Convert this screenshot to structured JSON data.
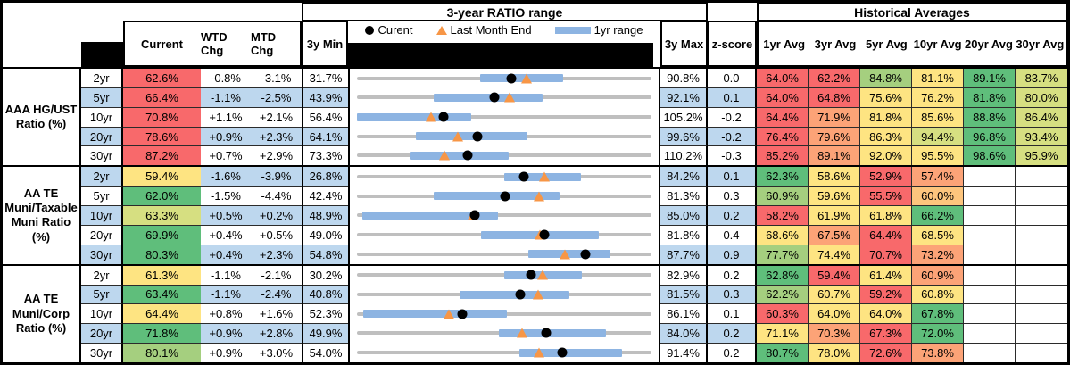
{
  "palette": {
    "r": "#F8696B",
    "o": "#FCA377",
    "oy": "#FDC57D",
    "y": "#FEE482",
    "yg": "#D6DF81",
    "lg": "#A5CF7F",
    "g": "#5FBE7B",
    "w": "#FFFFFF",
    "rowalt": "#BDD7EE",
    "bar_blue": "#8DB4E2",
    "line_gray": "#BFBFBF",
    "triangle_orange": "#F79646"
  },
  "header": {
    "chart_title": "3-year RATIO range",
    "hist_title": "Historical Averages",
    "col_current": "Current",
    "col_wtd": "WTD Chg",
    "col_mtd": "MTD Chg",
    "col_min": "3y Min",
    "col_max": "3y Max",
    "col_z": "z-score",
    "avg_cols": [
      "1yr Avg",
      "3yr Avg",
      "5yr Avg",
      "10yr Avg",
      "20yr Avg",
      "30yr Avg"
    ],
    "legend": {
      "current": "Curent",
      "last_month": "Last Month End",
      "range": "1yr range"
    }
  },
  "groups": [
    {
      "label": "AAA HG/UST Ratio (%)",
      "rows": [
        {
          "tenor": "2yr",
          "current": "62.6%",
          "cur_color": "r",
          "wtd": "-0.8%",
          "mtd": "-3.1%",
          "min": "31.7%",
          "max": "90.8%",
          "z": "0.0",
          "avgs": [
            {
              "v": "64.0%",
              "c": "r"
            },
            {
              "v": "62.2%",
              "c": "r"
            },
            {
              "v": "84.8%",
              "c": "lg"
            },
            {
              "v": "81.1%",
              "c": "y"
            },
            {
              "v": "89.1%",
              "c": "g"
            },
            {
              "v": "83.7%",
              "c": "yg"
            }
          ]
        },
        {
          "tenor": "5yr",
          "current": "66.4%",
          "cur_color": "r",
          "wtd": "-1.1%",
          "mtd": "-2.5%",
          "min": "43.9%",
          "max": "92.1%",
          "z": "0.1",
          "avgs": [
            {
              "v": "64.0%",
              "c": "r"
            },
            {
              "v": "64.8%",
              "c": "r"
            },
            {
              "v": "75.6%",
              "c": "y"
            },
            {
              "v": "76.2%",
              "c": "y"
            },
            {
              "v": "81.8%",
              "c": "g"
            },
            {
              "v": "80.0%",
              "c": "yg"
            }
          ]
        },
        {
          "tenor": "10yr",
          "current": "70.8%",
          "cur_color": "r",
          "wtd": "+1.1%",
          "mtd": "+2.1%",
          "min": "56.4%",
          "max": "105.2%",
          "z": "-0.2",
          "avgs": [
            {
              "v": "64.4%",
              "c": "r"
            },
            {
              "v": "71.9%",
              "c": "o"
            },
            {
              "v": "81.8%",
              "c": "y"
            },
            {
              "v": "85.6%",
              "c": "y"
            },
            {
              "v": "88.8%",
              "c": "g"
            },
            {
              "v": "86.4%",
              "c": "yg"
            }
          ]
        },
        {
          "tenor": "20yr",
          "current": "78.6%",
          "cur_color": "r",
          "wtd": "+0.9%",
          "mtd": "+2.3%",
          "min": "64.1%",
          "max": "99.6%",
          "z": "-0.2",
          "avgs": [
            {
              "v": "76.4%",
              "c": "r"
            },
            {
              "v": "79.6%",
              "c": "o"
            },
            {
              "v": "86.3%",
              "c": "y"
            },
            {
              "v": "94.4%",
              "c": "yg"
            },
            {
              "v": "96.8%",
              "c": "g"
            },
            {
              "v": "93.4%",
              "c": "yg"
            }
          ]
        },
        {
          "tenor": "30yr",
          "current": "87.2%",
          "cur_color": "r",
          "wtd": "+0.7%",
          "mtd": "+2.9%",
          "min": "73.3%",
          "max": "110.2%",
          "z": "-0.3",
          "avgs": [
            {
              "v": "85.2%",
              "c": "r"
            },
            {
              "v": "89.1%",
              "c": "o"
            },
            {
              "v": "92.0%",
              "c": "y"
            },
            {
              "v": "95.5%",
              "c": "y"
            },
            {
              "v": "98.6%",
              "c": "g"
            },
            {
              "v": "95.9%",
              "c": "yg"
            }
          ]
        }
      ]
    },
    {
      "label": "AA TE Muni/Taxable Muni Ratio (%)",
      "rows": [
        {
          "tenor": "2yr",
          "current": "59.4%",
          "cur_color": "y",
          "wtd": "-1.6%",
          "mtd": "-3.9%",
          "min": "26.8%",
          "max": "84.2%",
          "z": "0.1",
          "avgs": [
            {
              "v": "62.3%",
              "c": "g"
            },
            {
              "v": "58.6%",
              "c": "y"
            },
            {
              "v": "52.9%",
              "c": "r"
            },
            {
              "v": "57.4%",
              "c": "o"
            },
            {
              "v": "",
              "c": "w"
            },
            {
              "v": "",
              "c": "w"
            }
          ]
        },
        {
          "tenor": "5yr",
          "current": "62.0%",
          "cur_color": "g",
          "wtd": "-1.5%",
          "mtd": "-4.4%",
          "min": "42.4%",
          "max": "81.3%",
          "z": "0.3",
          "avgs": [
            {
              "v": "60.9%",
              "c": "lg"
            },
            {
              "v": "59.6%",
              "c": "y"
            },
            {
              "v": "55.5%",
              "c": "r"
            },
            {
              "v": "60.0%",
              "c": "oy"
            },
            {
              "v": "",
              "c": "w"
            },
            {
              "v": "",
              "c": "w"
            }
          ]
        },
        {
          "tenor": "10yr",
          "current": "63.3%",
          "cur_color": "yg",
          "wtd": "+0.5%",
          "mtd": "+0.2%",
          "min": "48.9%",
          "max": "85.0%",
          "z": "0.2",
          "avgs": [
            {
              "v": "58.2%",
              "c": "r"
            },
            {
              "v": "61.9%",
              "c": "y"
            },
            {
              "v": "61.8%",
              "c": "y"
            },
            {
              "v": "66.2%",
              "c": "g"
            },
            {
              "v": "",
              "c": "w"
            },
            {
              "v": "",
              "c": "w"
            }
          ]
        },
        {
          "tenor": "20yr",
          "current": "69.9%",
          "cur_color": "g",
          "wtd": "+0.4%",
          "mtd": "+0.5%",
          "min": "49.0%",
          "max": "81.8%",
          "z": "0.4",
          "avgs": [
            {
              "v": "68.6%",
              "c": "y"
            },
            {
              "v": "67.5%",
              "c": "o"
            },
            {
              "v": "64.4%",
              "c": "r"
            },
            {
              "v": "68.5%",
              "c": "y"
            },
            {
              "v": "",
              "c": "w"
            },
            {
              "v": "",
              "c": "w"
            }
          ]
        },
        {
          "tenor": "30yr",
          "current": "80.3%",
          "cur_color": "g",
          "wtd": "+0.4%",
          "mtd": "+2.3%",
          "min": "54.8%",
          "max": "87.7%",
          "z": "0.9",
          "avgs": [
            {
              "v": "77.7%",
              "c": "lg"
            },
            {
              "v": "74.4%",
              "c": "y"
            },
            {
              "v": "70.7%",
              "c": "r"
            },
            {
              "v": "73.2%",
              "c": "o"
            },
            {
              "v": "",
              "c": "w"
            },
            {
              "v": "",
              "c": "w"
            }
          ]
        }
      ]
    },
    {
      "label": "AA TE Muni/Corp Ratio (%)",
      "rows": [
        {
          "tenor": "2yr",
          "current": "61.3%",
          "cur_color": "y",
          "wtd": "-1.1%",
          "mtd": "-2.1%",
          "min": "30.2%",
          "max": "82.9%",
          "z": "0.2",
          "avgs": [
            {
              "v": "62.8%",
              "c": "g"
            },
            {
              "v": "59.4%",
              "c": "r"
            },
            {
              "v": "61.4%",
              "c": "y"
            },
            {
              "v": "60.9%",
              "c": "o"
            },
            {
              "v": "",
              "c": "w"
            },
            {
              "v": "",
              "c": "w"
            }
          ]
        },
        {
          "tenor": "5yr",
          "current": "63.4%",
          "cur_color": "g",
          "wtd": "-1.1%",
          "mtd": "-2.4%",
          "min": "40.8%",
          "max": "81.5%",
          "z": "0.3",
          "avgs": [
            {
              "v": "62.2%",
              "c": "lg"
            },
            {
              "v": "60.7%",
              "c": "y"
            },
            {
              "v": "59.2%",
              "c": "r"
            },
            {
              "v": "60.8%",
              "c": "y"
            },
            {
              "v": "",
              "c": "w"
            },
            {
              "v": "",
              "c": "w"
            }
          ]
        },
        {
          "tenor": "10yr",
          "current": "64.4%",
          "cur_color": "y",
          "wtd": "+0.8%",
          "mtd": "+1.6%",
          "min": "52.3%",
          "max": "86.1%",
          "z": "0.1",
          "avgs": [
            {
              "v": "60.3%",
              "c": "r"
            },
            {
              "v": "64.0%",
              "c": "y"
            },
            {
              "v": "64.0%",
              "c": "y"
            },
            {
              "v": "67.8%",
              "c": "g"
            },
            {
              "v": "",
              "c": "w"
            },
            {
              "v": "",
              "c": "w"
            }
          ]
        },
        {
          "tenor": "20yr",
          "current": "71.8%",
          "cur_color": "g",
          "wtd": "+0.9%",
          "mtd": "+2.8%",
          "min": "49.9%",
          "max": "84.0%",
          "z": "0.2",
          "avgs": [
            {
              "v": "71.1%",
              "c": "y"
            },
            {
              "v": "70.3%",
              "c": "o"
            },
            {
              "v": "67.3%",
              "c": "r"
            },
            {
              "v": "72.0%",
              "c": "g"
            },
            {
              "v": "",
              "c": "w"
            },
            {
              "v": "",
              "c": "w"
            }
          ]
        },
        {
          "tenor": "30yr",
          "current": "80.1%",
          "cur_color": "lg",
          "wtd": "+0.9%",
          "mtd": "+3.0%",
          "min": "54.0%",
          "max": "91.4%",
          "z": "0.2",
          "avgs": [
            {
              "v": "80.7%",
              "c": "g"
            },
            {
              "v": "78.0%",
              "c": "y"
            },
            {
              "v": "72.6%",
              "c": "r"
            },
            {
              "v": "73.8%",
              "c": "o"
            },
            {
              "v": "",
              "c": "w"
            },
            {
              "v": "",
              "c": "w"
            }
          ]
        }
      ]
    }
  ],
  "chart_data": {
    "type": "range_dot_plot",
    "title": "3-year RATIO range",
    "legend": [
      "Curent",
      "Last Month End",
      "1yr range"
    ],
    "x_units": "ratio %, each row scaled from its 3y Min to its 3y Max",
    "groups": [
      {
        "name": "AAA HG/UST Ratio (%)",
        "rows": [
          {
            "tenor": "2yr",
            "min3y": 31.7,
            "max3y": 90.8,
            "range1y": [
              56.5,
              73.1
            ],
            "current": 62.6,
            "last_month_end": 65.7
          },
          {
            "tenor": "5yr",
            "min3y": 43.9,
            "max3y": 92.1,
            "range1y": [
              56.4,
              74.3
            ],
            "current": 66.4,
            "last_month_end": 68.9
          },
          {
            "tenor": "10yr",
            "min3y": 56.4,
            "max3y": 105.2,
            "range1y": [
              56.4,
              75.4
            ],
            "current": 70.8,
            "last_month_end": 68.7
          },
          {
            "tenor": "20yr",
            "min3y": 64.1,
            "max3y": 99.6,
            "range1y": [
              71.2,
              84.7
            ],
            "current": 78.6,
            "last_month_end": 76.3
          },
          {
            "tenor": "30yr",
            "min3y": 73.3,
            "max3y": 110.2,
            "range1y": [
              79.9,
              92.3
            ],
            "current": 87.2,
            "last_month_end": 84.3
          }
        ]
      },
      {
        "name": "AA TE Muni/Taxable Muni Ratio (%)",
        "rows": [
          {
            "tenor": "2yr",
            "min3y": 26.8,
            "max3y": 84.2,
            "range1y": [
              55.5,
              70.4
            ],
            "current": 59.4,
            "last_month_end": 63.3
          },
          {
            "tenor": "5yr",
            "min3y": 42.4,
            "max3y": 81.3,
            "range1y": [
              52.5,
              69.2
            ],
            "current": 62.0,
            "last_month_end": 66.4
          },
          {
            "tenor": "10yr",
            "min3y": 48.9,
            "max3y": 85.0,
            "range1y": [
              49.6,
              66.2
            ],
            "current": 63.3,
            "last_month_end": 63.1
          },
          {
            "tenor": "20yr",
            "min3y": 49.0,
            "max3y": 81.8,
            "range1y": [
              62.8,
              75.9
            ],
            "current": 69.9,
            "last_month_end": 69.4
          },
          {
            "tenor": "30yr",
            "min3y": 54.8,
            "max3y": 87.7,
            "range1y": [
              73.9,
              83.1
            ],
            "current": 80.3,
            "last_month_end": 78.0
          }
        ]
      },
      {
        "name": "AA TE Muni/Corp Ratio (%)",
        "rows": [
          {
            "tenor": "2yr",
            "min3y": 30.2,
            "max3y": 82.9,
            "range1y": [
              56.6,
              70.5
            ],
            "current": 61.3,
            "last_month_end": 63.4
          },
          {
            "tenor": "5yr",
            "min3y": 40.8,
            "max3y": 81.5,
            "range1y": [
              55.0,
              70.1
            ],
            "current": 63.4,
            "last_month_end": 65.8
          },
          {
            "tenor": "10yr",
            "min3y": 52.3,
            "max3y": 86.1,
            "range1y": [
              53.0,
              69.5
            ],
            "current": 64.4,
            "last_month_end": 62.8
          },
          {
            "tenor": "20yr",
            "min3y": 49.9,
            "max3y": 84.0,
            "range1y": [
              66.3,
              78.7
            ],
            "current": 71.8,
            "last_month_end": 69.0
          },
          {
            "tenor": "30yr",
            "min3y": 54.0,
            "max3y": 91.4,
            "range1y": [
              74.6,
              87.7
            ],
            "current": 80.1,
            "last_month_end": 77.1
          }
        ]
      }
    ]
  }
}
